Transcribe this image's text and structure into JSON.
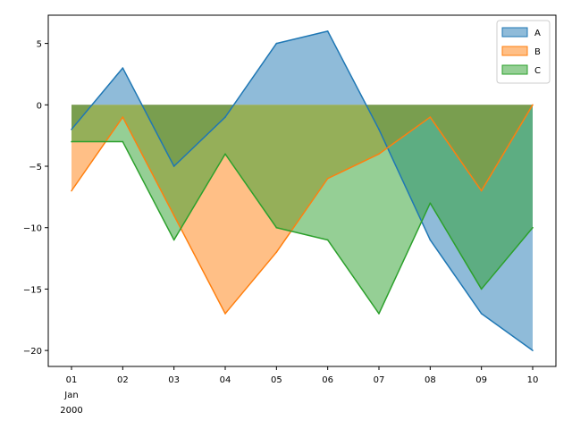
{
  "chart_data": {
    "type": "area",
    "stacked": false,
    "x": [
      "01",
      "02",
      "03",
      "04",
      "05",
      "06",
      "07",
      "08",
      "09",
      "10"
    ],
    "x_sublabels": [
      "Jan",
      "2000"
    ],
    "series": [
      {
        "name": "A",
        "color": "#1f77b4",
        "values": [
          -2,
          3,
          -5,
          -1,
          5,
          6,
          -2,
          -11,
          -17,
          -20
        ]
      },
      {
        "name": "B",
        "color": "#ff7f0e",
        "values": [
          -7,
          -1,
          -9,
          -17,
          -12,
          -6,
          -4,
          -1,
          -7,
          0
        ]
      },
      {
        "name": "C",
        "color": "#2ca02c",
        "values": [
          -3,
          -3,
          -11,
          -4,
          -10,
          -11,
          -17,
          -8,
          -15,
          -10
        ]
      }
    ],
    "fill_alpha": 0.5,
    "yticks": [
      5,
      0,
      -5,
      -10,
      -15,
      -20
    ],
    "ylim": [
      -21.3,
      7.3
    ],
    "grid": false,
    "legend_position": "top-right"
  }
}
